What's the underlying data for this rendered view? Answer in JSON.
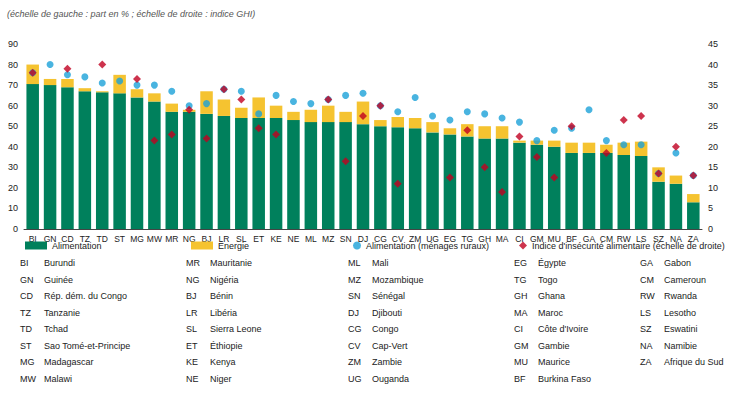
{
  "chart_data": {
    "type": "bar",
    "subtitle": "(échelle de gauche : part en % ; échelle de droite : indice GHI)",
    "stacked": true,
    "grid": false,
    "categories": [
      "BI",
      "GN",
      "CD",
      "TZ",
      "TD",
      "ST",
      "MG",
      "MW",
      "MR",
      "NG",
      "BJ",
      "LR",
      "SL",
      "ET",
      "KE",
      "NE",
      "ML",
      "MZ",
      "SN",
      "DJ",
      "CG",
      "CV",
      "ZM",
      "UG",
      "EG",
      "TG",
      "GH",
      "MA",
      "CI",
      "GM",
      "MU",
      "BF",
      "GA",
      "CM",
      "RW",
      "LS",
      "SZ",
      "NA",
      "ZA"
    ],
    "ylim": [
      0,
      90
    ],
    "yticks": [
      0,
      10,
      20,
      30,
      40,
      50,
      60,
      70,
      80,
      90
    ],
    "y2lim": [
      0,
      45
    ],
    "y2ticks": [
      0,
      5,
      10,
      15,
      20,
      25,
      30,
      35,
      40,
      45
    ],
    "series": [
      {
        "name": "Alimentation",
        "type": "bar",
        "color": "#00805c",
        "values": [
          70.5,
          70,
          69,
          67,
          66.5,
          66,
          64,
          62,
          57,
          57,
          56,
          55,
          54,
          54,
          54,
          53,
          52,
          52,
          52,
          51,
          50,
          49.5,
          49,
          47,
          46,
          45,
          44,
          44,
          42,
          41,
          40,
          37,
          37,
          37,
          36,
          35.5,
          23,
          22,
          13
        ]
      },
      {
        "name": "Énergie",
        "type": "bar",
        "color": "#f5c330",
        "values": [
          9.5,
          3,
          4,
          1.5,
          0.5,
          9,
          4,
          4,
          4,
          1,
          11,
          8,
          5,
          10,
          6,
          4,
          6,
          8,
          5,
          11,
          3,
          5,
          5,
          5,
          3,
          6,
          6,
          6,
          1,
          2,
          3,
          5,
          5,
          4,
          6,
          7,
          7,
          4,
          4
        ]
      },
      {
        "name": "Alimentation (ménages ruraux)",
        "type": "scatter",
        "marker": "circle",
        "color": "#1ba1d8",
        "values": [
          76,
          80,
          75,
          74,
          71,
          72,
          70,
          70,
          67,
          60,
          61,
          68,
          67,
          56,
          65,
          62,
          61,
          63,
          65,
          66,
          60,
          57,
          64,
          55,
          53,
          57,
          56,
          54,
          52,
          43,
          48,
          49,
          58,
          43,
          41,
          41,
          27,
          37,
          26
        ]
      },
      {
        "name": "Indice d'insécurité alimentaire (échelle de droite)",
        "type": "scatter",
        "marker": "diamond",
        "color": "#c00020",
        "axis": "y2",
        "values": [
          38,
          null,
          39,
          null,
          40,
          null,
          36.5,
          21.5,
          23,
          29,
          22,
          34,
          31.5,
          24.5,
          23,
          null,
          null,
          31.5,
          16.5,
          27.5,
          30,
          11,
          null,
          null,
          12.5,
          24,
          15,
          9,
          22.5,
          17.5,
          12.5,
          25,
          null,
          18.5,
          26.5,
          27.5,
          13.5,
          20,
          13
        ]
      }
    ],
    "country_codes": [
      {
        "code": "BI",
        "name": "Burundi"
      },
      {
        "code": "GN",
        "name": "Guinée"
      },
      {
        "code": "CD",
        "name": "Rép. dém. du Congo"
      },
      {
        "code": "TZ",
        "name": "Tanzanie"
      },
      {
        "code": "TD",
        "name": "Tchad"
      },
      {
        "code": "ST",
        "name": "Sao Tomé-et-Principe"
      },
      {
        "code": "MG",
        "name": "Madagascar"
      },
      {
        "code": "MW",
        "name": "Malawi"
      },
      {
        "code": "MR",
        "name": "Mauritanie"
      },
      {
        "code": "NG",
        "name": "Nigéria"
      },
      {
        "code": "BJ",
        "name": "Bénin"
      },
      {
        "code": "LR",
        "name": "Libéria"
      },
      {
        "code": "SL",
        "name": "Sierra Leone"
      },
      {
        "code": "ET",
        "name": "Éthiopie"
      },
      {
        "code": "KE",
        "name": "Kenya"
      },
      {
        "code": "NE",
        "name": "Niger"
      },
      {
        "code": "ML",
        "name": "Mali"
      },
      {
        "code": "MZ",
        "name": "Mozambique"
      },
      {
        "code": "SN",
        "name": "Sénégal"
      },
      {
        "code": "DJ",
        "name": "Djibouti"
      },
      {
        "code": "CG",
        "name": "Congo"
      },
      {
        "code": "CV",
        "name": "Cap-Vert"
      },
      {
        "code": "ZM",
        "name": "Zambie"
      },
      {
        "code": "UG",
        "name": "Ouganda"
      },
      {
        "code": "EG",
        "name": "Égypte"
      },
      {
        "code": "TG",
        "name": "Togo"
      },
      {
        "code": "GH",
        "name": "Ghana"
      },
      {
        "code": "MA",
        "name": "Maroc"
      },
      {
        "code": "CI",
        "name": "Côte d'Ivoire"
      },
      {
        "code": "GM",
        "name": "Gambie"
      },
      {
        "code": "MU",
        "name": "Maurice"
      },
      {
        "code": "BF",
        "name": "Burkina Faso"
      },
      {
        "code": "GA",
        "name": "Gabon"
      },
      {
        "code": "CM",
        "name": "Cameroun"
      },
      {
        "code": "RW",
        "name": "Rwanda"
      },
      {
        "code": "LS",
        "name": "Lesotho"
      },
      {
        "code": "SZ",
        "name": "Eswatini"
      },
      {
        "code": "NA",
        "name": "Namibie"
      },
      {
        "code": "ZA",
        "name": "Afrique du Sud"
      }
    ]
  }
}
